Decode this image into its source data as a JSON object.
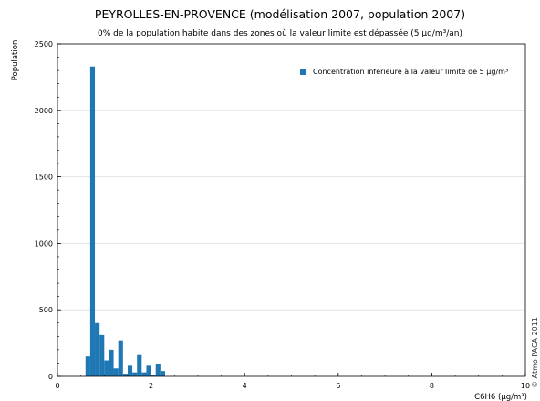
{
  "chart_data": {
    "type": "bar",
    "title": "PEYROLLES-EN-PROVENCE (modélisation 2007, population 2007)",
    "subtitle": "0% de la population habite dans des zones où la valeur limite est dépassée (5 µg/m³/an)",
    "xlabel": "C6H6 (µg/m³)",
    "ylabel": "Population",
    "xlim": [
      0,
      10
    ],
    "ylim": [
      0,
      2500
    ],
    "xticks": [
      0,
      2,
      4,
      6,
      8,
      10
    ],
    "yticks": [
      0,
      500,
      1000,
      1500,
      2000,
      2500
    ],
    "bin_width": 0.1,
    "grid": "horizontal",
    "legend_position": "top-right",
    "series": [
      {
        "name": "Concentration inférieure à la valeur limite de 5 µg/m³",
        "color": "#1f77b4",
        "x": [
          0.6,
          0.7,
          0.8,
          0.9,
          1.0,
          1.1,
          1.2,
          1.3,
          1.4,
          1.5,
          1.6,
          1.7,
          1.8,
          1.9,
          2.0,
          2.1,
          2.2
        ],
        "values": [
          150,
          2330,
          400,
          310,
          120,
          200,
          60,
          270,
          20,
          80,
          30,
          160,
          30,
          80,
          10,
          90,
          40
        ]
      }
    ],
    "watermark": "© Atmo PACA 2011"
  }
}
